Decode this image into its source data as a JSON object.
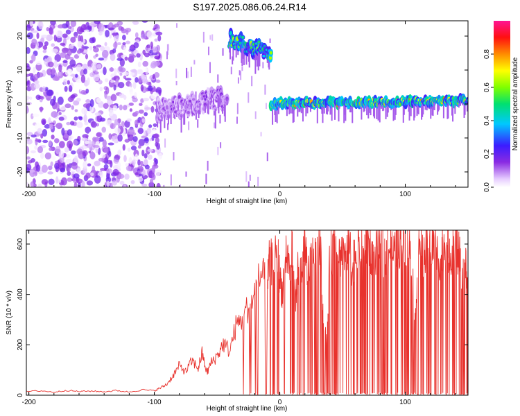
{
  "title": "S197.2025.086.06.24.R14",
  "colors": {
    "snr_line": "#e8322d",
    "frame": "#000000"
  },
  "chart_data": [
    {
      "type": "heatmap",
      "xlabel": "Height of straight line (km)",
      "ylabel": "Frequency (Hz)",
      "xlim": [
        -202,
        150
      ],
      "ylim": [
        -24.5,
        24.5
      ],
      "x_ticks": [
        -200,
        -100,
        0,
        100
      ],
      "x_tick_labels": [
        "-200",
        "-100",
        "0",
        "100"
      ],
      "y_ticks": [
        -20,
        -10,
        0,
        10,
        20
      ],
      "y_tick_labels": [
        "-20",
        "-10",
        "0",
        "10",
        "20"
      ],
      "colorbar": {
        "label": "Normalized spectral amplitude",
        "range": [
          0,
          1
        ],
        "ticks": [
          0.0,
          0.2,
          0.4,
          0.6,
          0.8
        ],
        "tick_labels": [
          "0.0",
          "0.2",
          "0.4",
          "0.6",
          "0.8"
        ],
        "colormap": "rainbow (white → violet → blue → cyan → green → yellow → red → magenta)"
      },
      "features": [
        {
          "region": "noise",
          "x_range": [
            -202,
            -95
          ],
          "freq_range": [
            -24.5,
            24.5
          ],
          "amplitude": 0.1
        },
        {
          "region": "weak signal",
          "x_range": [
            -98,
            -42
          ],
          "freq_center_start": -2,
          "freq_center_end": 2,
          "amplitude": 0.15
        },
        {
          "region": "strong offset signal",
          "x_range": [
            -40,
            -7
          ],
          "freq_center_start": 19,
          "freq_center_end": 15,
          "amplitude": 0.6
        },
        {
          "region": "carrier",
          "x_range": [
            -7,
            150
          ],
          "freq_center_start": 0,
          "freq_center_end": 1,
          "amplitude": 0.75
        }
      ]
    },
    {
      "type": "line",
      "xlabel": "Height of straight line (km)",
      "ylabel": "SNR (10 * v/v)",
      "xlim": [
        -202,
        150
      ],
      "ylim": [
        0,
        655
      ],
      "x_ticks": [
        -200,
        -100,
        0,
        100
      ],
      "x_tick_labels": [
        "-200",
        "-100",
        "0",
        "100"
      ],
      "y_ticks": [
        0,
        200,
        400,
        600
      ],
      "y_tick_labels": [
        "0",
        "200",
        "400",
        "600"
      ],
      "series": [
        {
          "x": [
            -202,
            -190,
            -180,
            -170,
            -160,
            -150,
            -140,
            -130,
            -120,
            -110,
            -100,
            -95,
            -90,
            -85,
            -80,
            -75,
            -70,
            -65,
            -62,
            -58,
            -55,
            -50,
            -45,
            -40,
            -35,
            -30,
            -25,
            -20,
            -15,
            -10,
            -8,
            -5,
            -2,
            0,
            2,
            5,
            8,
            10,
            13,
            15,
            18,
            20,
            23,
            25,
            28,
            30,
            33,
            35,
            38,
            40,
            43,
            45,
            48,
            50,
            53,
            55,
            58,
            60,
            63,
            65,
            68,
            70,
            73,
            75,
            78,
            80,
            83,
            85,
            88,
            90,
            93,
            95,
            98,
            100,
            103,
            105,
            108,
            110,
            113,
            115,
            118,
            120,
            123,
            125,
            128,
            130,
            133,
            135,
            138,
            140,
            143,
            145,
            148,
            150
          ],
          "values": [
            15,
            18,
            12,
            20,
            15,
            17,
            14,
            19,
            13,
            22,
            18,
            30,
            45,
            80,
            120,
            95,
            140,
            110,
            170,
            90,
            130,
            160,
            210,
            180,
            280,
            310,
            360,
            410,
            500,
            440,
            560,
            520,
            600,
            480,
            420,
            580,
            520,
            600,
            380,
            560,
            540,
            620,
            480,
            600,
            540,
            590,
            600,
            230,
            260,
            580,
            610,
            590,
            560,
            600,
            590,
            610,
            520,
            590,
            600,
            580,
            600,
            610,
            590,
            520,
            600,
            610,
            580,
            590,
            600,
            570,
            610,
            620,
            650,
            640,
            600,
            580,
            280,
            590,
            600,
            560,
            590,
            600,
            610,
            590,
            560,
            600,
            610,
            590,
            580,
            610,
            560,
            520,
            520,
            450
          ]
        }
      ]
    }
  ]
}
